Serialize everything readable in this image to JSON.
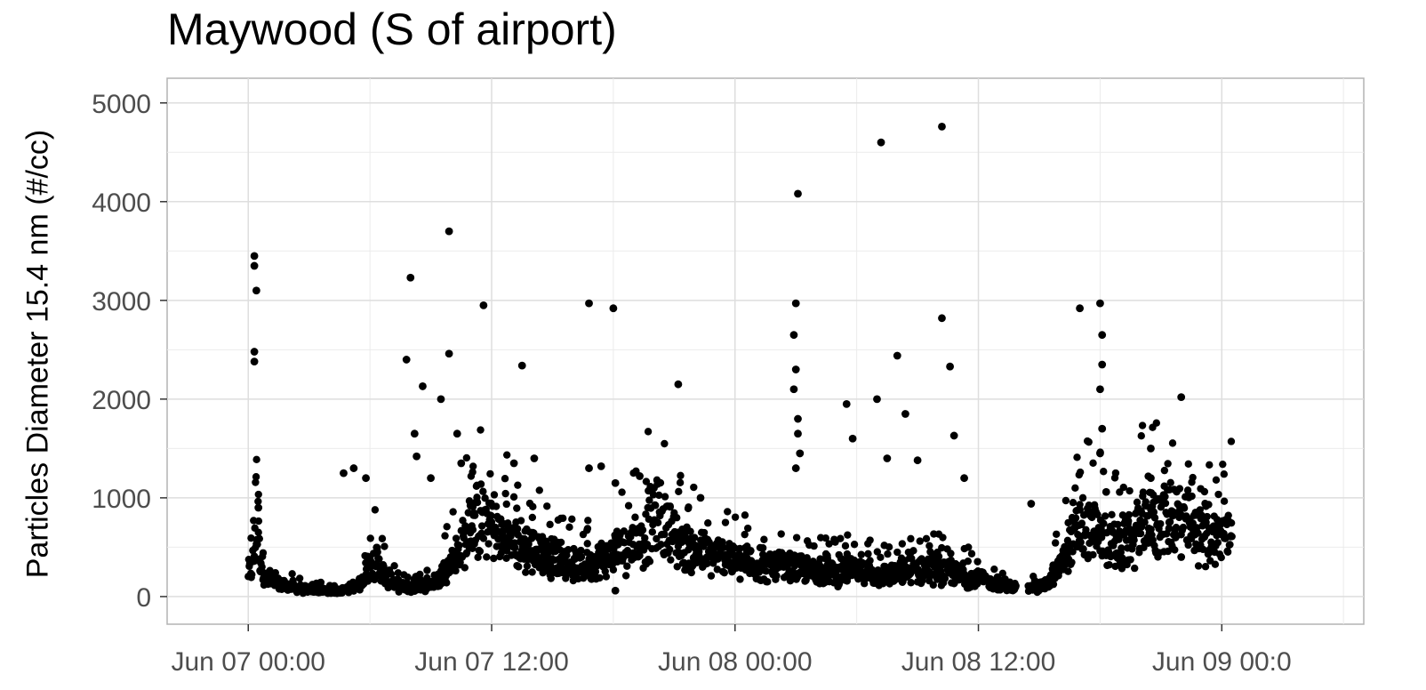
{
  "chart_data": {
    "type": "scatter",
    "title": "Maywood (S of airport)",
    "ylabel": "Particles Diameter 15.4 nm (#/cc)",
    "xlabel": "",
    "x_unit": "hours since Jun 07 00:00",
    "xlim": [
      -4.0,
      55.0
    ],
    "ylim": [
      -280,
      5250
    ],
    "x_ticks": [
      {
        "value": 0,
        "label": "Jun 07 00:00"
      },
      {
        "value": 12,
        "label": "Jun 07 12:00"
      },
      {
        "value": 24,
        "label": "Jun 08 00:00"
      },
      {
        "value": 36,
        "label": "Jun 08 12:00"
      },
      {
        "value": 48,
        "label": "Jun 09 00:0"
      }
    ],
    "y_ticks": [
      {
        "value": 0,
        "label": "0"
      },
      {
        "value": 1000,
        "label": "1000"
      },
      {
        "value": 2000,
        "label": "2000"
      },
      {
        "value": 3000,
        "label": "3000"
      },
      {
        "value": 4000,
        "label": "4000"
      },
      {
        "value": 5000,
        "label": "5000"
      }
    ],
    "grid": true,
    "marker_color": "#000000",
    "baseline": [
      [
        0.0,
        250
      ],
      [
        0.2,
        300
      ],
      [
        0.4,
        600
      ],
      [
        0.6,
        400
      ],
      [
        0.8,
        200
      ],
      [
        1.0,
        150
      ],
      [
        1.5,
        120
      ],
      [
        2.0,
        100
      ],
      [
        2.5,
        80
      ],
      [
        3.0,
        70
      ],
      [
        3.5,
        60
      ],
      [
        4.0,
        50
      ],
      [
        4.5,
        60
      ],
      [
        5.0,
        80
      ],
      [
        5.5,
        120
      ],
      [
        6.0,
        300
      ],
      [
        6.3,
        380
      ],
      [
        6.6,
        250
      ],
      [
        7.0,
        150
      ],
      [
        7.5,
        100
      ],
      [
        8.0,
        90
      ],
      [
        8.5,
        100
      ],
      [
        9.0,
        130
      ],
      [
        9.5,
        200
      ],
      [
        10.0,
        350
      ],
      [
        10.5,
        500
      ],
      [
        11.0,
        650
      ],
      [
        11.5,
        800
      ],
      [
        12.0,
        700
      ],
      [
        12.5,
        600
      ],
      [
        13.0,
        550
      ],
      [
        13.5,
        500
      ],
      [
        14.0,
        480
      ],
      [
        14.5,
        450
      ],
      [
        15.0,
        400
      ],
      [
        15.5,
        350
      ],
      [
        16.0,
        320
      ],
      [
        16.5,
        300
      ],
      [
        17.0,
        330
      ],
      [
        17.5,
        380
      ],
      [
        18.0,
        420
      ],
      [
        18.5,
        500
      ],
      [
        19.0,
        550
      ],
      [
        19.5,
        600
      ],
      [
        20.0,
        800
      ],
      [
        20.5,
        750
      ],
      [
        21.0,
        600
      ],
      [
        21.5,
        500
      ],
      [
        22.0,
        450
      ],
      [
        22.5,
        420
      ],
      [
        23.0,
        400
      ],
      [
        23.5,
        420
      ],
      [
        24.0,
        350
      ],
      [
        24.5,
        330
      ],
      [
        25.0,
        320
      ],
      [
        25.5,
        300
      ],
      [
        26.0,
        300
      ],
      [
        26.5,
        290
      ],
      [
        27.0,
        280
      ],
      [
        27.5,
        270
      ],
      [
        28.0,
        260
      ],
      [
        28.5,
        250
      ],
      [
        29.0,
        240
      ],
      [
        29.5,
        250
      ],
      [
        30.0,
        260
      ],
      [
        30.5,
        240
      ],
      [
        31.0,
        220
      ],
      [
        31.5,
        210
      ],
      [
        32.0,
        230
      ],
      [
        32.5,
        250
      ],
      [
        33.0,
        280
      ],
      [
        33.5,
        300
      ],
      [
        34.0,
        270
      ],
      [
        34.5,
        250
      ],
      [
        35.0,
        220
      ],
      [
        35.5,
        200
      ],
      [
        36.0,
        180
      ],
      [
        36.5,
        150
      ],
      [
        37.0,
        120
      ],
      [
        37.5,
        100
      ],
      [
        38.0,
        90
      ],
      [
        38.5,
        80
      ],
      [
        39.0,
        90
      ],
      [
        39.5,
        150
      ],
      [
        40.0,
        300
      ],
      [
        40.5,
        500
      ],
      [
        41.0,
        700
      ],
      [
        41.5,
        650
      ],
      [
        42.0,
        600
      ],
      [
        42.5,
        550
      ],
      [
        43.0,
        500
      ],
      [
        43.5,
        550
      ],
      [
        44.0,
        700
      ],
      [
        44.5,
        750
      ],
      [
        45.0,
        800
      ],
      [
        45.5,
        850
      ],
      [
        46.0,
        750
      ],
      [
        46.5,
        700
      ],
      [
        47.0,
        650
      ],
      [
        47.5,
        600
      ],
      [
        48.0,
        620
      ],
      [
        48.5,
        650
      ]
    ],
    "outliers": [
      [
        0.3,
        3450
      ],
      [
        0.3,
        3350
      ],
      [
        0.4,
        3100
      ],
      [
        0.3,
        2480
      ],
      [
        0.3,
        2380
      ],
      [
        0.5,
        900
      ],
      [
        4.7,
        1250
      ],
      [
        5.2,
        1300
      ],
      [
        5.8,
        1200
      ],
      [
        7.8,
        2400
      ],
      [
        8.0,
        3230
      ],
      [
        8.2,
        1650
      ],
      [
        8.3,
        1420
      ],
      [
        8.6,
        2130
      ],
      [
        9.0,
        1200
      ],
      [
        9.5,
        2000
      ],
      [
        9.9,
        3700
      ],
      [
        9.9,
        2460
      ],
      [
        10.3,
        1650
      ],
      [
        10.5,
        1350
      ],
      [
        11.6,
        2950
      ],
      [
        13.1,
        1350
      ],
      [
        13.5,
        2340
      ],
      [
        14.1,
        1400
      ],
      [
        16.8,
        2970
      ],
      [
        16.8,
        1300
      ],
      [
        17.4,
        1320
      ],
      [
        18.0,
        2920
      ],
      [
        18.1,
        1150
      ],
      [
        18.1,
        60
      ],
      [
        19.3,
        1220
      ],
      [
        20.0,
        1100
      ],
      [
        21.2,
        2150
      ],
      [
        22.3,
        1000
      ],
      [
        27.1,
        4080
      ],
      [
        27.0,
        2970
      ],
      [
        26.9,
        2650
      ],
      [
        27.0,
        2300
      ],
      [
        26.9,
        2100
      ],
      [
        27.1,
        1800
      ],
      [
        27.1,
        1650
      ],
      [
        27.2,
        1450
      ],
      [
        27.0,
        1300
      ],
      [
        29.5,
        1950
      ],
      [
        29.8,
        1600
      ],
      [
        31.0,
        2000
      ],
      [
        31.2,
        4600
      ],
      [
        31.5,
        1400
      ],
      [
        32.0,
        2440
      ],
      [
        32.4,
        1850
      ],
      [
        33.0,
        1380
      ],
      [
        34.2,
        4760
      ],
      [
        34.2,
        2820
      ],
      [
        34.6,
        2330
      ],
      [
        34.8,
        1630
      ],
      [
        35.3,
        1200
      ],
      [
        38.6,
        940
      ],
      [
        41.0,
        2920
      ],
      [
        41.0,
        880
      ],
      [
        42.0,
        2970
      ],
      [
        42.1,
        2650
      ],
      [
        42.1,
        2350
      ],
      [
        42.0,
        2100
      ],
      [
        42.1,
        1700
      ],
      [
        42.0,
        1450
      ],
      [
        42.3,
        1060
      ],
      [
        44.4,
        690
      ],
      [
        44.5,
        1500
      ],
      [
        44.5,
        1200
      ],
      [
        44.5,
        680
      ],
      [
        45.4,
        690
      ],
      [
        46.0,
        2020
      ],
      [
        46.0,
        400
      ]
    ]
  }
}
